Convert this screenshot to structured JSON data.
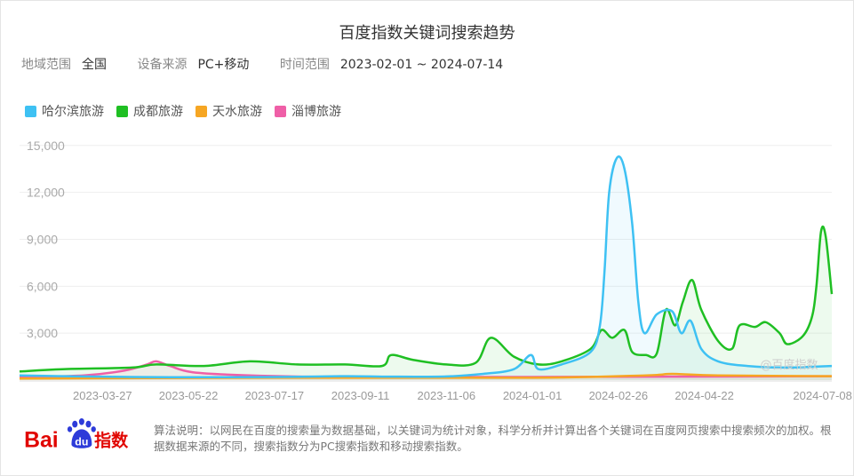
{
  "header": {
    "title": "百度指数关键词搜索趋势",
    "region_label": "地域范围",
    "region_value": "全国",
    "device_label": "设备来源",
    "device_value": "PC+移动",
    "time_label": "时间范围",
    "time_value": "2023-02-01 ~ 2024-07-14"
  },
  "legend": [
    {
      "name": "哈尔滨旅游",
      "color": "#3ec1f3"
    },
    {
      "name": "成都旅游",
      "color": "#1fbf23"
    },
    {
      "name": "天水旅游",
      "color": "#f6a623"
    },
    {
      "name": "淄博旅游",
      "color": "#ef5fa7"
    }
  ],
  "watermark": "@百度指数",
  "footer": {
    "note": "算法说明：以网民在百度的搜索量为数据基础，以关键词为统计对象，科学分析并计算出各个关键词在百度网页搜索中搜索频次的加权。根据数据来源的不同，搜索指数分为PC搜索指数和移动搜索指数。"
  },
  "logo": {
    "bai": "Bai",
    "du": "du",
    "zhishu": "指数"
  },
  "chart_data": {
    "type": "area",
    "x_start": "2023-02-01",
    "x_end": "2024-07-14",
    "x_ticks": [
      "2023-03-27",
      "2023-05-22",
      "2023-07-17",
      "2023-09-11",
      "2023-11-06",
      "2024-01-01",
      "2024-02-26",
      "2024-04-22",
      "2024-07-08"
    ],
    "y_ticks": [
      3000,
      6000,
      9000,
      12000,
      15000
    ],
    "y_tick_labels": [
      "3,000",
      "6,000",
      "9,000",
      "12,000",
      "15,000"
    ],
    "ylim": [
      0,
      15500
    ],
    "grid": true,
    "legend_position": "top-left",
    "series": [
      {
        "name": "哈尔滨旅游",
        "color": "#3ec1f3",
        "points": [
          [
            "2023-02-01",
            300
          ],
          [
            "2023-03-01",
            250
          ],
          [
            "2023-04-15",
            200
          ],
          [
            "2023-06-01",
            180
          ],
          [
            "2023-07-17",
            200
          ],
          [
            "2023-09-01",
            250
          ],
          [
            "2023-10-01",
            220
          ],
          [
            "2023-11-06",
            230
          ],
          [
            "2023-11-30",
            400
          ],
          [
            "2023-12-20",
            700
          ],
          [
            "2023-12-31",
            1600
          ],
          [
            "2024-01-05",
            700
          ],
          [
            "2024-01-20",
            1000
          ],
          [
            "2024-02-08",
            1800
          ],
          [
            "2024-02-14",
            3500
          ],
          [
            "2024-02-17",
            7000
          ],
          [
            "2024-02-20",
            12000
          ],
          [
            "2024-02-25",
            14200
          ],
          [
            "2024-03-01",
            13500
          ],
          [
            "2024-03-06",
            10000
          ],
          [
            "2024-03-10",
            5000
          ],
          [
            "2024-03-14",
            3000
          ],
          [
            "2024-03-22",
            4200
          ],
          [
            "2024-04-01",
            4400
          ],
          [
            "2024-04-07",
            3000
          ],
          [
            "2024-04-13",
            3800
          ],
          [
            "2024-04-20",
            2000
          ],
          [
            "2024-05-01",
            1200
          ],
          [
            "2024-05-20",
            900
          ],
          [
            "2024-06-15",
            800
          ],
          [
            "2024-07-14",
            900
          ]
        ]
      },
      {
        "name": "成都旅游",
        "color": "#1fbf23",
        "points": [
          [
            "2023-02-01",
            550
          ],
          [
            "2023-03-01",
            700
          ],
          [
            "2023-04-15",
            800
          ],
          [
            "2023-05-01",
            1000
          ],
          [
            "2023-06-01",
            900
          ],
          [
            "2023-07-01",
            1200
          ],
          [
            "2023-08-01",
            1000
          ],
          [
            "2023-09-01",
            1000
          ],
          [
            "2023-09-25",
            900
          ],
          [
            "2023-10-01",
            1600
          ],
          [
            "2023-10-15",
            1300
          ],
          [
            "2023-11-06",
            1000
          ],
          [
            "2023-11-25",
            1100
          ],
          [
            "2023-12-05",
            2700
          ],
          [
            "2023-12-20",
            1500
          ],
          [
            "2024-01-05",
            1000
          ],
          [
            "2024-01-20",
            1200
          ],
          [
            "2024-02-08",
            2000
          ],
          [
            "2024-02-15",
            3200
          ],
          [
            "2024-02-22",
            2700
          ],
          [
            "2024-03-01",
            3200
          ],
          [
            "2024-03-06",
            1800
          ],
          [
            "2024-03-15",
            1600
          ],
          [
            "2024-03-22",
            1700
          ],
          [
            "2024-03-28",
            4500
          ],
          [
            "2024-04-03",
            3500
          ],
          [
            "2024-04-08",
            5000
          ],
          [
            "2024-04-14",
            6400
          ],
          [
            "2024-04-20",
            4500
          ],
          [
            "2024-05-01",
            2500
          ],
          [
            "2024-05-10",
            2000
          ],
          [
            "2024-05-15",
            3500
          ],
          [
            "2024-05-25",
            3400
          ],
          [
            "2024-06-01",
            3700
          ],
          [
            "2024-06-10",
            3000
          ],
          [
            "2024-06-15",
            2300
          ],
          [
            "2024-06-25",
            2800
          ],
          [
            "2024-07-01",
            4000
          ],
          [
            "2024-07-04",
            6000
          ],
          [
            "2024-07-07",
            9500
          ],
          [
            "2024-07-10",
            9200
          ],
          [
            "2024-07-14",
            5500
          ]
        ]
      },
      {
        "name": "天水旅游",
        "color": "#f6a623",
        "points": [
          [
            "2023-02-01",
            100
          ],
          [
            "2023-07-17",
            150
          ],
          [
            "2024-01-01",
            150
          ],
          [
            "2024-03-15",
            300
          ],
          [
            "2024-04-01",
            400
          ],
          [
            "2024-05-01",
            300
          ],
          [
            "2024-07-14",
            250
          ]
        ]
      },
      {
        "name": "淄博旅游",
        "color": "#ef5fa7",
        "points": [
          [
            "2023-02-01",
            200
          ],
          [
            "2023-03-15",
            300
          ],
          [
            "2023-04-10",
            600
          ],
          [
            "2023-04-25",
            1000
          ],
          [
            "2023-05-01",
            1200
          ],
          [
            "2023-05-10",
            900
          ],
          [
            "2023-05-25",
            500
          ],
          [
            "2023-07-01",
            300
          ],
          [
            "2023-09-01",
            200
          ],
          [
            "2024-01-01",
            200
          ],
          [
            "2024-07-14",
            250
          ]
        ]
      }
    ]
  }
}
